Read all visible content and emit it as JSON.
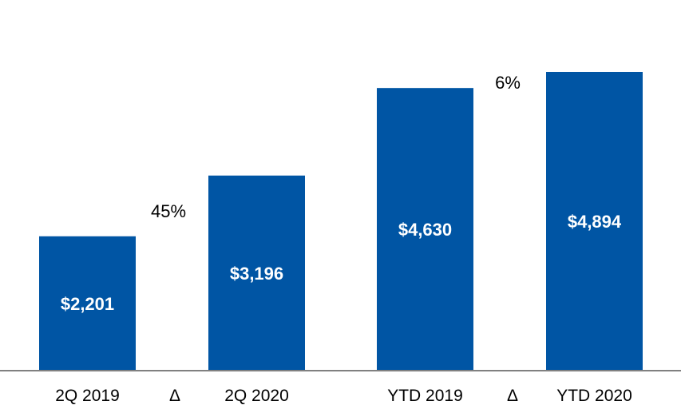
{
  "colors": {
    "bar": "#0055A4",
    "axis": "#808080"
  },
  "chart_data": {
    "type": "bar",
    "categories": [
      "2Q 2019",
      "2Q 2020",
      "YTD 2019",
      "YTD 2020"
    ],
    "values": [
      2201,
      3196,
      4630,
      4894
    ],
    "data_labels": [
      "$2,201",
      "$3,196",
      "$4,630",
      "$4,894"
    ],
    "ylim": [
      0,
      4894
    ],
    "deltas": [
      {
        "symbol": "Δ",
        "change": "45%",
        "between": [
          "2Q 2019",
          "2Q 2020"
        ]
      },
      {
        "symbol": "Δ",
        "change": "6%",
        "between": [
          "YTD 2019",
          "YTD 2020"
        ]
      }
    ],
    "grid": false,
    "legend": "none"
  }
}
